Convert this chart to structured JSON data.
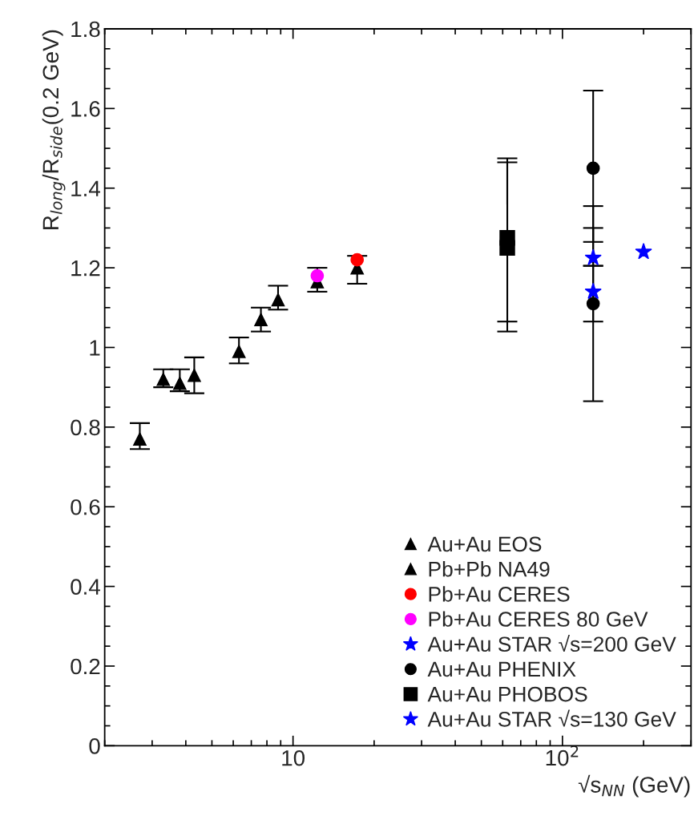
{
  "chart_data": {
    "type": "scatter",
    "xlabel": "√s$_{NN}$ (GeV)",
    "ylabel": "R$_{long}$/R$_{side}$(0.2 GeV)",
    "log": "x",
    "xlim": [
      2,
      300
    ],
    "xticks": [
      {
        "value": 10,
        "label": "10"
      },
      {
        "value": 100,
        "label": "10$^{2}$"
      }
    ],
    "ylim": [
      0,
      1.8
    ],
    "yticks": [
      0,
      0.2,
      0.4,
      0.6,
      0.8,
      1,
      1.2,
      1.4,
      1.6,
      1.8
    ],
    "grid": false,
    "legend": "bottom right",
    "series": [
      {
        "name": "Au+Au EOS",
        "color": "#000000",
        "marker": "triangle",
        "x": [
          2.7,
          3.3,
          3.8,
          4.3
        ],
        "values": [
          0.77,
          0.92,
          0.91,
          0.93
        ],
        "errors": [
          [
            0.745,
            0.81
          ],
          [
            0.9,
            0.945
          ],
          [
            0.89,
            0.945
          ],
          [
            0.885,
            0.975
          ]
        ]
      },
      {
        "name": "Pb+Pb NA49",
        "color": "#000000",
        "marker": "triangle",
        "x": [
          6.3,
          7.6,
          8.8,
          12.3,
          17.3
        ],
        "values": [
          0.99,
          1.07,
          1.12,
          1.165,
          1.2
        ],
        "errors": [
          [
            0.96,
            1.025
          ],
          [
            1.04,
            1.1
          ],
          [
            1.095,
            1.155
          ],
          [
            1.14,
            1.2
          ],
          [
            1.16,
            1.23
          ]
        ]
      },
      {
        "name": "Pb+Au CERES",
        "color": "#ff0000",
        "marker": "circle",
        "x": [
          17.3
        ],
        "values": [
          1.22
        ]
      },
      {
        "name": "Pb+Au CERES 80 GeV",
        "color": "#ff00ff",
        "marker": "circle",
        "x": [
          12.3
        ],
        "values": [
          1.18
        ]
      },
      {
        "name": "Au+Au STAR √s=200 GeV",
        "color": "#0000ff",
        "marker": "star",
        "x": [
          200
        ],
        "values": [
          1.24
        ]
      },
      {
        "name": "Au+Au PHENIX",
        "color": "#000000",
        "marker": "circle",
        "x": [
          130,
          130
        ],
        "values": [
          1.45,
          1.11
        ],
        "errors": [
          [
            1.265,
            1.645
          ],
          [
            0.865,
            1.355
          ]
        ]
      },
      {
        "name": "Au+Au PHOBOS",
        "color": "#000000",
        "marker": "square",
        "x": [
          62.4,
          62.4
        ],
        "values": [
          1.275,
          1.25
        ],
        "errors": [
          [
            1.065,
            1.475
          ],
          [
            1.04,
            1.465
          ]
        ]
      },
      {
        "name": "Au+Au STAR √s=130 GeV",
        "color": "#0000ff",
        "marker": "star",
        "x": [
          130,
          130
        ],
        "values": [
          1.225,
          1.14
        ],
        "errors": [
          [
            1.205,
            1.3
          ],
          [
            1.065,
            1.205
          ]
        ]
      }
    ]
  }
}
